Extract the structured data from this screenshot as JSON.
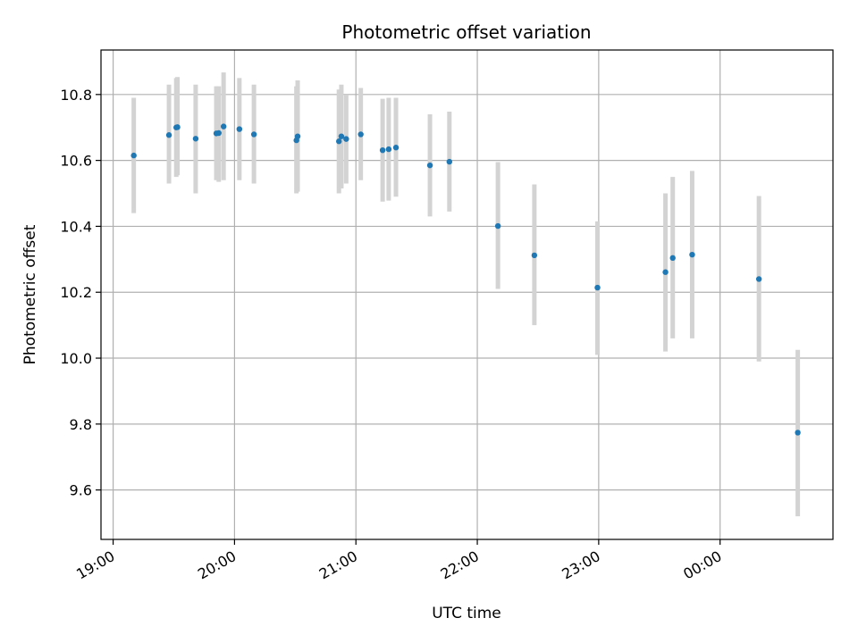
{
  "chart_data": {
    "type": "scatter",
    "title": "Photometric offset variation",
    "xlabel": "UTC time",
    "ylabel": "Photometric offset",
    "x_unit": "hours since 19:00 UTC",
    "xlim": [
      -0.1,
      5.93
    ],
    "ylim": [
      9.45,
      10.935
    ],
    "x_ticks": [
      0,
      1,
      2,
      3,
      4,
      5
    ],
    "x_tick_labels": [
      "19:00",
      "20:00",
      "21:00",
      "22:00",
      "23:00",
      "00:00"
    ],
    "y_ticks": [
      9.6,
      9.8,
      10.0,
      10.2,
      10.4,
      10.6,
      10.8
    ],
    "y_tick_labels": [
      "9.6",
      "9.8",
      "10.0",
      "10.2",
      "10.4",
      "10.6",
      "10.8"
    ],
    "grid": true,
    "colors": {
      "point": "#1f77b4",
      "errorbar": "#d3d3d3",
      "grid": "#b0b0b0"
    },
    "series": [
      {
        "points": [
          {
            "x": 0.17,
            "y": 10.615,
            "lo": 10.44,
            "hi": 10.79
          },
          {
            "x": 0.46,
            "y": 10.677,
            "lo": 10.53,
            "hi": 10.83
          },
          {
            "x": 0.52,
            "y": 10.7,
            "lo": 10.55,
            "hi": 10.85
          },
          {
            "x": 0.53,
            "y": 10.701,
            "lo": 10.555,
            "hi": 10.853
          },
          {
            "x": 0.68,
            "y": 10.666,
            "lo": 10.5,
            "hi": 10.83
          },
          {
            "x": 0.85,
            "y": 10.682,
            "lo": 10.54,
            "hi": 10.825
          },
          {
            "x": 0.87,
            "y": 10.683,
            "lo": 10.535,
            "hi": 10.825
          },
          {
            "x": 0.91,
            "y": 10.703,
            "lo": 10.54,
            "hi": 10.867
          },
          {
            "x": 1.04,
            "y": 10.695,
            "lo": 10.54,
            "hi": 10.85
          },
          {
            "x": 1.16,
            "y": 10.679,
            "lo": 10.53,
            "hi": 10.83
          },
          {
            "x": 1.51,
            "y": 10.661,
            "lo": 10.5,
            "hi": 10.825
          },
          {
            "x": 1.52,
            "y": 10.673,
            "lo": 10.505,
            "hi": 10.843
          },
          {
            "x": 1.86,
            "y": 10.658,
            "lo": 10.5,
            "hi": 10.815
          },
          {
            "x": 1.88,
            "y": 10.673,
            "lo": 10.515,
            "hi": 10.83
          },
          {
            "x": 1.92,
            "y": 10.665,
            "lo": 10.53,
            "hi": 10.8
          },
          {
            "x": 2.04,
            "y": 10.679,
            "lo": 10.54,
            "hi": 10.82
          },
          {
            "x": 2.22,
            "y": 10.631,
            "lo": 10.475,
            "hi": 10.787
          },
          {
            "x": 2.27,
            "y": 10.634,
            "lo": 10.478,
            "hi": 10.79
          },
          {
            "x": 2.33,
            "y": 10.639,
            "lo": 10.49,
            "hi": 10.79
          },
          {
            "x": 2.61,
            "y": 10.585,
            "lo": 10.43,
            "hi": 10.74
          },
          {
            "x": 2.77,
            "y": 10.596,
            "lo": 10.445,
            "hi": 10.748
          },
          {
            "x": 3.17,
            "y": 10.401,
            "lo": 10.21,
            "hi": 10.595
          },
          {
            "x": 3.47,
            "y": 10.312,
            "lo": 10.1,
            "hi": 10.527
          },
          {
            "x": 3.99,
            "y": 10.214,
            "lo": 10.01,
            "hi": 10.415
          },
          {
            "x": 4.55,
            "y": 10.261,
            "lo": 10.02,
            "hi": 10.5
          },
          {
            "x": 4.61,
            "y": 10.304,
            "lo": 10.06,
            "hi": 10.55
          },
          {
            "x": 4.77,
            "y": 10.314,
            "lo": 10.06,
            "hi": 10.568
          },
          {
            "x": 5.32,
            "y": 10.24,
            "lo": 9.99,
            "hi": 10.492
          },
          {
            "x": 5.64,
            "y": 9.774,
            "lo": 9.52,
            "hi": 10.025
          }
        ]
      }
    ]
  }
}
